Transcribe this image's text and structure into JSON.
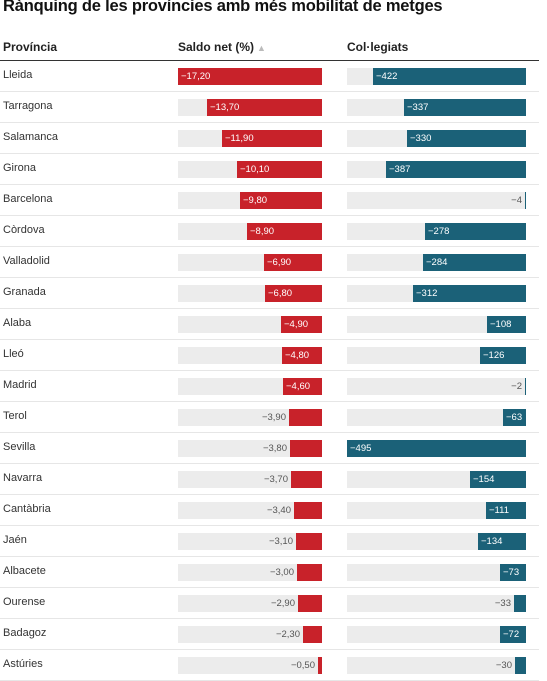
{
  "title": "Rànquing de les províncies amb més mobilitat de metges",
  "headers": {
    "provincia": "Província",
    "saldo": "Saldo net (%)",
    "sort_icon": "sort-ascending-icon",
    "colegiats": "Col·legiats"
  },
  "colors": {
    "saldo_bar": "#c8222a",
    "colegiats_bar": "#1b6178",
    "track": "#ececec"
  },
  "chart_data": {
    "type": "table",
    "columns": [
      "Província",
      "Saldo net (%)",
      "Col·legiats"
    ],
    "saldo_max_abs": 17.2,
    "colegiats_max_abs": 495,
    "rows": [
      {
        "provincia": "Lleida",
        "saldo": -17.2,
        "saldo_label": "−17,20",
        "colegiats": -422,
        "colegiats_label": "−422"
      },
      {
        "provincia": "Tarragona",
        "saldo": -13.7,
        "saldo_label": "−13,70",
        "colegiats": -337,
        "colegiats_label": "−337"
      },
      {
        "provincia": "Salamanca",
        "saldo": -11.9,
        "saldo_label": "−11,90",
        "colegiats": -330,
        "colegiats_label": "−330"
      },
      {
        "provincia": "Girona",
        "saldo": -10.1,
        "saldo_label": "−10,10",
        "colegiats": -387,
        "colegiats_label": "−387"
      },
      {
        "provincia": "Barcelona",
        "saldo": -9.8,
        "saldo_label": "−9,80",
        "colegiats": -4,
        "colegiats_label": "−4"
      },
      {
        "provincia": "Còrdova",
        "saldo": -8.9,
        "saldo_label": "−8,90",
        "colegiats": -278,
        "colegiats_label": "−278"
      },
      {
        "provincia": "Valladolid",
        "saldo": -6.9,
        "saldo_label": "−6,90",
        "colegiats": -284,
        "colegiats_label": "−284"
      },
      {
        "provincia": "Granada",
        "saldo": -6.8,
        "saldo_label": "−6,80",
        "colegiats": -312,
        "colegiats_label": "−312"
      },
      {
        "provincia": "Alaba",
        "saldo": -4.9,
        "saldo_label": "−4,90",
        "colegiats": -108,
        "colegiats_label": "−108"
      },
      {
        "provincia": "Lleó",
        "saldo": -4.8,
        "saldo_label": "−4,80",
        "colegiats": -126,
        "colegiats_label": "−126"
      },
      {
        "provincia": "Madrid",
        "saldo": -4.6,
        "saldo_label": "−4,60",
        "colegiats": -2,
        "colegiats_label": "−2"
      },
      {
        "provincia": "Terol",
        "saldo": -3.9,
        "saldo_label": "−3,90",
        "colegiats": -63,
        "colegiats_label": "−63"
      },
      {
        "provincia": "Sevilla",
        "saldo": -3.8,
        "saldo_label": "−3,80",
        "colegiats": -495,
        "colegiats_label": "−495"
      },
      {
        "provincia": "Navarra",
        "saldo": -3.7,
        "saldo_label": "−3,70",
        "colegiats": -154,
        "colegiats_label": "−154"
      },
      {
        "provincia": "Cantàbria",
        "saldo": -3.4,
        "saldo_label": "−3,40",
        "colegiats": -111,
        "colegiats_label": "−111"
      },
      {
        "provincia": "Jaén",
        "saldo": -3.1,
        "saldo_label": "−3,10",
        "colegiats": -134,
        "colegiats_label": "−134"
      },
      {
        "provincia": "Albacete",
        "saldo": -3.0,
        "saldo_label": "−3,00",
        "colegiats": -73,
        "colegiats_label": "−73"
      },
      {
        "provincia": "Ourense",
        "saldo": -2.9,
        "saldo_label": "−2,90",
        "colegiats": -33,
        "colegiats_label": "−33"
      },
      {
        "provincia": "Badagoz",
        "saldo": -2.3,
        "saldo_label": "−2,30",
        "colegiats": -72,
        "colegiats_label": "−72"
      },
      {
        "provincia": "Astúries",
        "saldo": -0.5,
        "saldo_label": "−0,50",
        "colegiats": -30,
        "colegiats_label": "−30"
      }
    ]
  }
}
